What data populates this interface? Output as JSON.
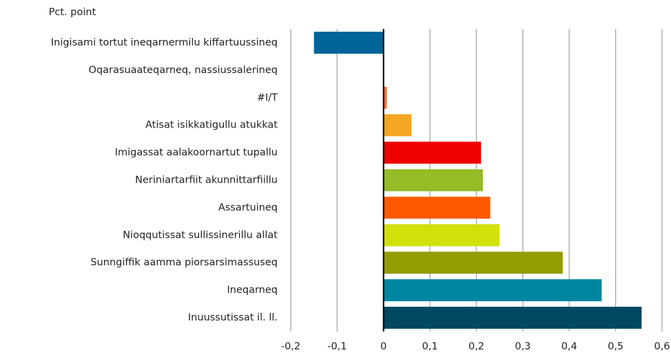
{
  "chart_data": {
    "type": "barh",
    "axis_title": "Pct. point",
    "categories": [
      "Inigisami tortut ineqarnermilu kiffartuussineq",
      "Oqarasuaateqarneq, nassiussalerineq",
      "#I/T",
      "Atisat isikkatigullu atukkat",
      "Imigassat aalakoornartut tupallu",
      "Neriniartarfiit akunnittarfiillu",
      "Assartuineq",
      "Nioqqutissat sullissinerillu allat",
      "Sunngiffik aamma piorsarsimassuseq",
      "Ineqarneq",
      "Inuussutissat il. ll."
    ],
    "values": [
      -0.15,
      0,
      0.007,
      0.06,
      0.21,
      0.214,
      0.23,
      0.25,
      0.386,
      0.47,
      0.556
    ],
    "colors": [
      "#00669a",
      "#00669a",
      "#f36f3a",
      "#f5a623",
      "#ee0000",
      "#95bb26",
      "#ff5a00",
      "#d1df0a",
      "#939c00",
      "#00869f",
      "#004860"
    ],
    "xlim": [
      -0.2,
      0.6
    ],
    "xticks": [
      {
        "value": -0.2,
        "label": "-0,2"
      },
      {
        "value": -0.1,
        "label": "-0,1"
      },
      0,
      {
        "value": 0.1,
        "label": "0,1"
      },
      {
        "value": 0.2,
        "label": "0,2"
      },
      {
        "value": 0.3,
        "label": "0,3"
      },
      {
        "value": 0.4,
        "label": "0,4"
      },
      {
        "value": 0.5,
        "label": "0,5"
      },
      {
        "value": 0.6,
        "label": "0,6"
      }
    ],
    "grid": true
  }
}
